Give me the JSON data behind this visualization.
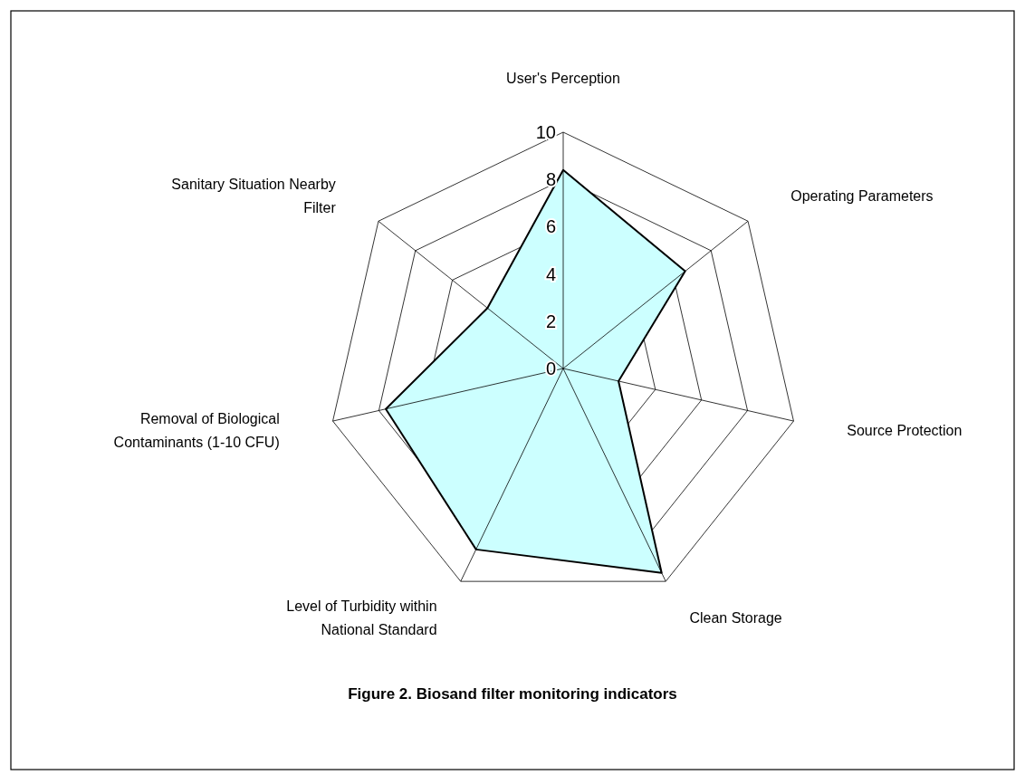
{
  "chart_data": {
    "type": "radar",
    "title": "Figure 2. Biosand filter monitoring indicators",
    "categories": [
      "User's Perception",
      "Operating Parameters",
      "Source Protection",
      "Clean Storage",
      "Level of Turbidity within National Standard",
      "Removal of Biological Contaminants (1-10 CFU)",
      "Sanitary Situation Nearby Filter"
    ],
    "series": [
      {
        "color": "#ccffff",
        "values": [
          8.4,
          6.6,
          2.4,
          9.6,
          8.5,
          7.7,
          4.1
        ]
      }
    ],
    "ylim": [
      0,
      10
    ],
    "yticks": [
      0,
      2,
      4,
      6,
      8,
      10
    ],
    "grid": true
  }
}
